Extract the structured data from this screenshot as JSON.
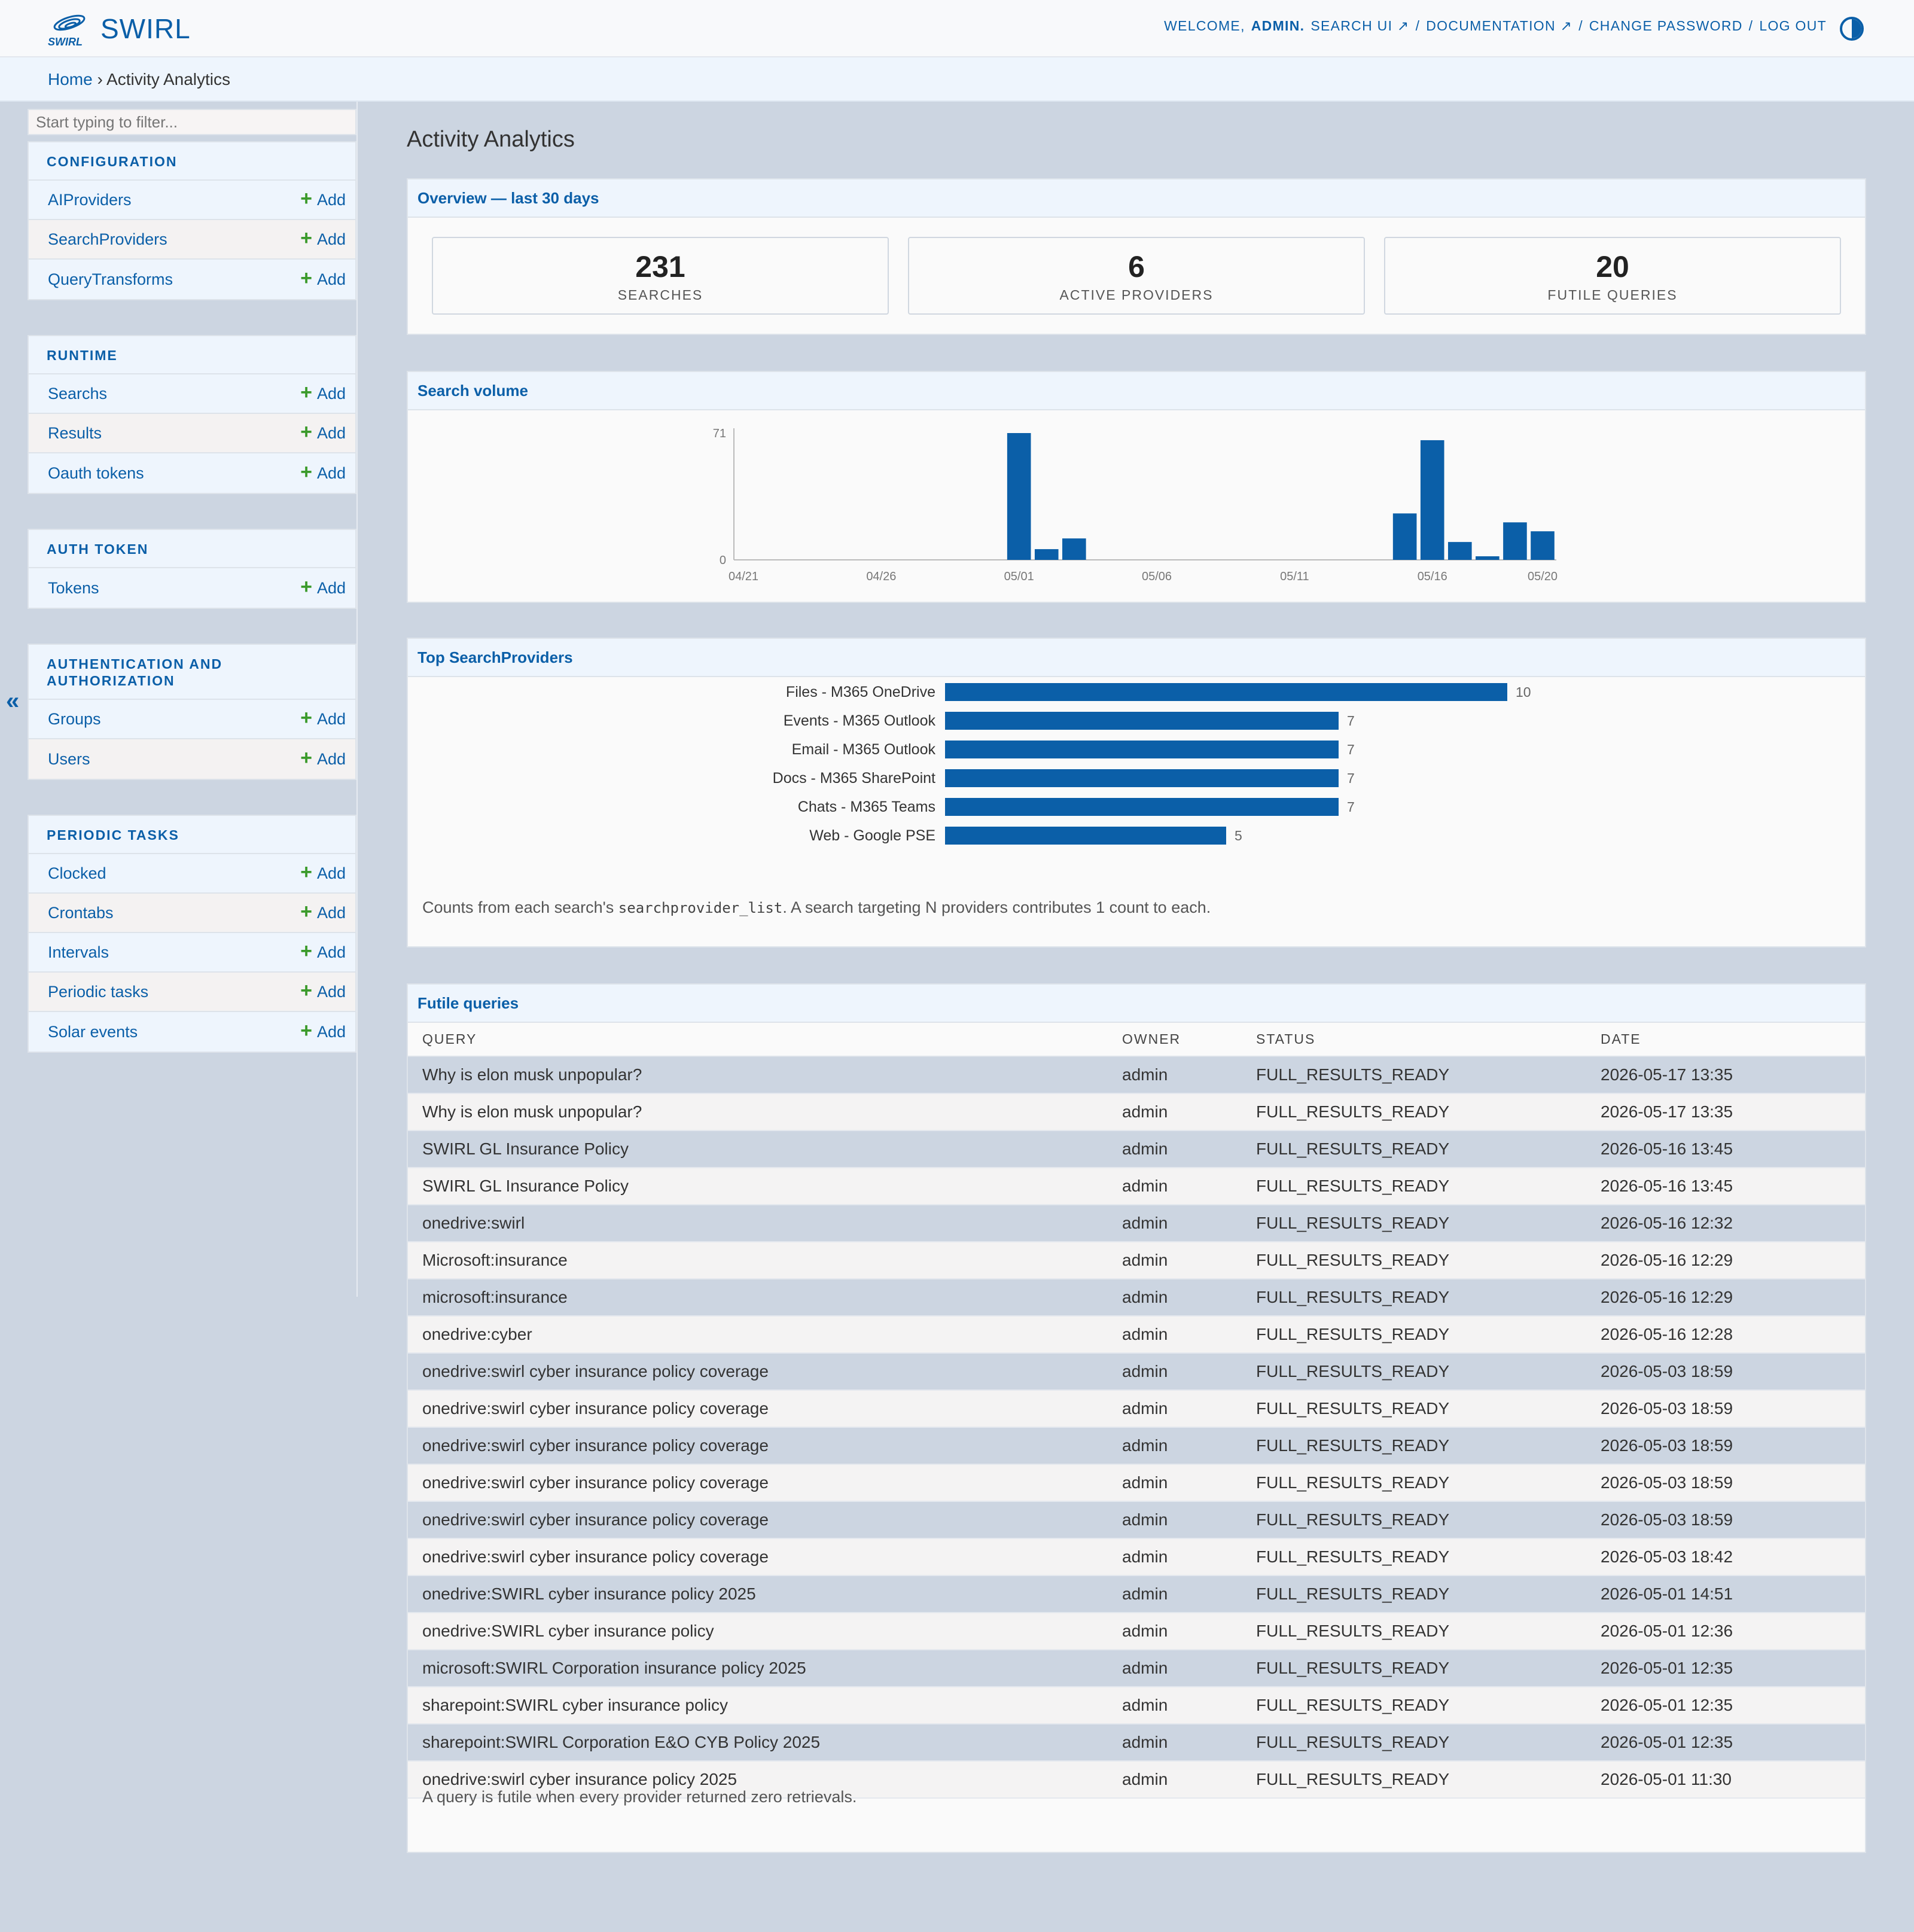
{
  "header": {
    "brand_logo_text": "SWIRL",
    "brand_name": "SWIRL",
    "welcome": "WELCOME,",
    "user": "ADMIN.",
    "links": [
      "SEARCH UI ↗",
      "DOCUMENTATION ↗",
      "CHANGE PASSWORD",
      "LOG OUT"
    ],
    "separator": "/"
  },
  "breadcrumbs": {
    "home": "Home",
    "sep": "›",
    "current": "Activity Analytics"
  },
  "sidebar": {
    "filter_placeholder": "Start typing to filter...",
    "add_label": "Add",
    "collapse": "«",
    "modules": [
      {
        "caption": "CONFIGURATION",
        "models": [
          "AIProviders",
          "SearchProviders",
          "QueryTransforms"
        ]
      },
      {
        "caption": "RUNTIME",
        "models": [
          "Searchs",
          "Results",
          "Oauth tokens"
        ]
      },
      {
        "caption": "AUTH TOKEN",
        "models": [
          "Tokens"
        ]
      },
      {
        "caption": "AUTHENTICATION AND AUTHORIZATION",
        "models": [
          "Groups",
          "Users"
        ]
      },
      {
        "caption": "PERIODIC TASKS",
        "models": [
          "Clocked",
          "Crontabs",
          "Intervals",
          "Periodic tasks",
          "Solar events"
        ]
      }
    ]
  },
  "main": {
    "title": "Activity Analytics",
    "overview": {
      "header": "Overview — last 30 days",
      "stats": [
        {
          "value": "231",
          "label": "SEARCHES"
        },
        {
          "value": "6",
          "label": "ACTIVE PROVIDERS"
        },
        {
          "value": "20",
          "label": "FUTILE QUERIES"
        }
      ]
    },
    "volume": {
      "header": "Search volume"
    },
    "providers": {
      "header": "Top SearchProviders",
      "note_prefix": "Counts from each search's ",
      "note_code": "searchprovider_list",
      "note_suffix": ". A search targeting N providers contributes 1 count to each."
    },
    "futile": {
      "header": "Futile queries",
      "columns": [
        "QUERY",
        "OWNER",
        "STATUS",
        "DATE"
      ],
      "rows": [
        [
          "Why is elon musk unpopular?",
          "admin",
          "FULL_RESULTS_READY",
          "2026-05-17 13:35"
        ],
        [
          "Why is elon musk unpopular?",
          "admin",
          "FULL_RESULTS_READY",
          "2026-05-17 13:35"
        ],
        [
          "SWIRL GL Insurance Policy",
          "admin",
          "FULL_RESULTS_READY",
          "2026-05-16 13:45"
        ],
        [
          "SWIRL GL Insurance Policy",
          "admin",
          "FULL_RESULTS_READY",
          "2026-05-16 13:45"
        ],
        [
          "onedrive:swirl",
          "admin",
          "FULL_RESULTS_READY",
          "2026-05-16 12:32"
        ],
        [
          "Microsoft:insurance",
          "admin",
          "FULL_RESULTS_READY",
          "2026-05-16 12:29"
        ],
        [
          "microsoft:insurance",
          "admin",
          "FULL_RESULTS_READY",
          "2026-05-16 12:29"
        ],
        [
          "onedrive:cyber",
          "admin",
          "FULL_RESULTS_READY",
          "2026-05-16 12:28"
        ],
        [
          "onedrive:swirl cyber insurance policy coverage",
          "admin",
          "FULL_RESULTS_READY",
          "2026-05-03 18:59"
        ],
        [
          "onedrive:swirl cyber insurance policy coverage",
          "admin",
          "FULL_RESULTS_READY",
          "2026-05-03 18:59"
        ],
        [
          "onedrive:swirl cyber insurance policy coverage",
          "admin",
          "FULL_RESULTS_READY",
          "2026-05-03 18:59"
        ],
        [
          "onedrive:swirl cyber insurance policy coverage",
          "admin",
          "FULL_RESULTS_READY",
          "2026-05-03 18:59"
        ],
        [
          "onedrive:swirl cyber insurance policy coverage",
          "admin",
          "FULL_RESULTS_READY",
          "2026-05-03 18:59"
        ],
        [
          "onedrive:swirl cyber insurance policy coverage",
          "admin",
          "FULL_RESULTS_READY",
          "2026-05-03 18:42"
        ],
        [
          "onedrive:SWIRL cyber insurance policy 2025",
          "admin",
          "FULL_RESULTS_READY",
          "2026-05-01 14:51"
        ],
        [
          "onedrive:SWIRL cyber insurance policy",
          "admin",
          "FULL_RESULTS_READY",
          "2026-05-01 12:36"
        ],
        [
          "microsoft:SWIRL Corporation insurance policy 2025",
          "admin",
          "FULL_RESULTS_READY",
          "2026-05-01 12:35"
        ],
        [
          "sharepoint:SWIRL cyber insurance policy",
          "admin",
          "FULL_RESULTS_READY",
          "2026-05-01 12:35"
        ],
        [
          "sharepoint:SWIRL Corporation E&O CYB Policy 2025",
          "admin",
          "FULL_RESULTS_READY",
          "2026-05-01 12:35"
        ],
        [
          "onedrive:swirl cyber insurance policy 2025",
          "admin",
          "FULL_RESULTS_READY",
          "2026-05-01 11:30"
        ]
      ],
      "note": "A query is futile when every provider returned zero retrievals."
    }
  },
  "colors": {
    "accent": "#0b5fa8",
    "bar": "#0b5fa8",
    "add_plus": "#3b9a2b",
    "page_bg": "#ccd5e1"
  },
  "chart_data": [
    {
      "type": "bar",
      "title": "Search volume",
      "x_ticks": [
        "04/21",
        "04/26",
        "05/01",
        "05/06",
        "05/11",
        "05/16",
        "05/20"
      ],
      "y_ticks": [
        0,
        71
      ],
      "ylim": [
        0,
        71
      ],
      "categories": [
        "05/01",
        "05/02",
        "05/03",
        "05/15",
        "05/16",
        "05/17",
        "05/18",
        "05/19",
        "05/20"
      ],
      "values": [
        71,
        6,
        12,
        26,
        67,
        10,
        2,
        21,
        16
      ]
    },
    {
      "type": "bar",
      "orientation": "horizontal",
      "title": "Top SearchProviders",
      "categories": [
        "Files - M365 OneDrive",
        "Events - M365 Outlook",
        "Email - M365 Outlook",
        "Docs - M365 SharePoint",
        "Chats - M365 Teams",
        "Web - Google PSE"
      ],
      "values": [
        10,
        7,
        7,
        7,
        7,
        5
      ]
    }
  ]
}
